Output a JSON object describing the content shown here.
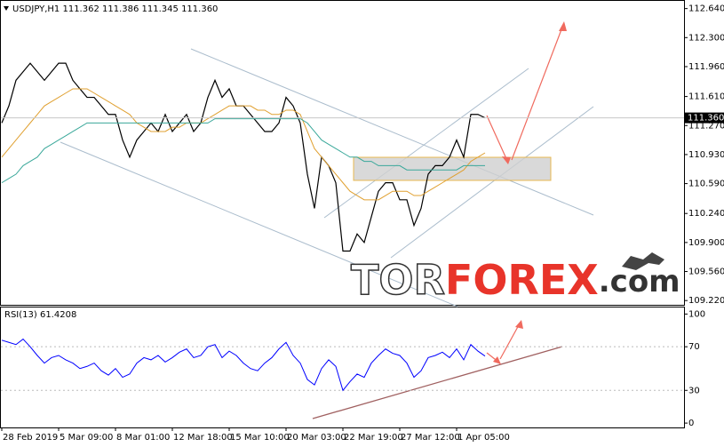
{
  "header": "USDJPY,H1  111.362 111.386 111.345 111.360",
  "watermark": {
    "prefix": "TOR",
    "main": "FOREX",
    "suffix": ".com"
  },
  "chart_data": [
    {
      "type": "line",
      "last_price": {
        "value": 111.36,
        "label": "111.360"
      },
      "categories": [
        "28 Feb 2019",
        null,
        null,
        null,
        null,
        null,
        null,
        null,
        "5 Mar 09:00",
        null,
        null,
        null,
        null,
        null,
        null,
        null,
        "8 Mar 01:00",
        null,
        null,
        null,
        null,
        null,
        null,
        null,
        "12 Mar 18:00",
        null,
        null,
        null,
        null,
        null,
        null,
        null,
        "15 Mar 10:00",
        null,
        null,
        null,
        null,
        null,
        null,
        null,
        "20 Mar 03:00",
        null,
        null,
        null,
        null,
        null,
        null,
        null,
        "22 Mar 19:00",
        null,
        null,
        null,
        null,
        null,
        null,
        null,
        "27 Mar 12:00",
        null,
        null,
        null,
        null,
        null,
        null,
        null,
        "1 Apr 05:00",
        null,
        null,
        null,
        null
      ],
      "ylim": [
        109.17,
        112.73
      ],
      "yticks": [
        {
          "value": 112.64,
          "label": "112.640"
        },
        {
          "value": 112.3,
          "label": "112.300"
        },
        {
          "value": 111.96,
          "label": "111.960"
        },
        {
          "value": 111.61,
          "label": "111.610"
        },
        {
          "value": 111.27,
          "label": "111.270"
        },
        {
          "value": 110.93,
          "label": "110.930"
        },
        {
          "value": 110.59,
          "label": "110.590"
        },
        {
          "value": 110.24,
          "label": "110.240"
        },
        {
          "value": 109.9,
          "label": "109.900"
        },
        {
          "value": 109.56,
          "label": "109.560"
        },
        {
          "value": 109.22,
          "label": "109.220"
        }
      ],
      "series": [
        {
          "color": "#000000",
          "values": [
            111.3,
            111.5,
            111.8,
            111.9,
            112.0,
            111.9,
            111.8,
            111.9,
            112.0,
            112.0,
            111.8,
            111.7,
            111.6,
            111.6,
            111.5,
            111.4,
            111.4,
            111.1,
            110.9,
            111.1,
            111.2,
            111.3,
            111.2,
            111.4,
            111.2,
            111.3,
            111.4,
            111.2,
            111.3,
            111.6,
            111.8,
            111.6,
            111.7,
            111.5,
            111.5,
            111.4,
            111.3,
            111.2,
            111.2,
            111.3,
            111.6,
            111.5,
            111.3,
            110.7,
            110.3,
            110.9,
            110.8,
            110.6,
            109.8,
            109.8,
            110.0,
            109.9,
            110.2,
            110.5,
            110.6,
            110.6,
            110.4,
            110.4,
            110.1,
            110.3,
            110.7,
            110.8,
            110.8,
            110.9,
            111.1,
            110.9,
            111.4,
            111.4,
            111.36
          ]
        },
        {
          "color": "#e0a030",
          "values": [
            110.9,
            111.0,
            111.1,
            111.2,
            111.3,
            111.4,
            111.5,
            111.55,
            111.6,
            111.65,
            111.7,
            111.7,
            111.7,
            111.65,
            111.6,
            111.55,
            111.5,
            111.45,
            111.4,
            111.3,
            111.25,
            111.2,
            111.2,
            111.2,
            111.25,
            111.25,
            111.3,
            111.3,
            111.3,
            111.35,
            111.4,
            111.45,
            111.5,
            111.5,
            111.5,
            111.5,
            111.45,
            111.45,
            111.4,
            111.4,
            111.45,
            111.45,
            111.4,
            111.2,
            111.0,
            110.9,
            110.8,
            110.7,
            110.6,
            110.5,
            110.45,
            110.4,
            110.4,
            110.4,
            110.45,
            110.5,
            110.5,
            110.5,
            110.45,
            110.45,
            110.5,
            110.55,
            110.6,
            110.65,
            110.7,
            110.75,
            110.85,
            110.9,
            110.95
          ]
        },
        {
          "color": "#3aa89a",
          "values": [
            110.6,
            110.65,
            110.7,
            110.8,
            110.85,
            110.9,
            111.0,
            111.05,
            111.1,
            111.15,
            111.2,
            111.25,
            111.3,
            111.3,
            111.3,
            111.3,
            111.3,
            111.3,
            111.3,
            111.3,
            111.3,
            111.3,
            111.3,
            111.3,
            111.3,
            111.3,
            111.3,
            111.3,
            111.3,
            111.3,
            111.35,
            111.35,
            111.35,
            111.35,
            111.35,
            111.35,
            111.35,
            111.35,
            111.35,
            111.35,
            111.35,
            111.35,
            111.35,
            111.3,
            111.2,
            111.1,
            111.05,
            111.0,
            110.95,
            110.9,
            110.9,
            110.85,
            110.85,
            110.8,
            110.8,
            110.8,
            110.8,
            110.75,
            110.75,
            110.75,
            110.75,
            110.75,
            110.75,
            110.75,
            110.75,
            110.8,
            110.8,
            110.8,
            110.8
          ]
        }
      ]
    },
    {
      "type": "line",
      "title": "RSI(13) 61.4208",
      "ylim": [
        -4,
        106
      ],
      "yticks": [
        100,
        70,
        30,
        0
      ],
      "series": [
        {
          "color": "#0000ff",
          "values": [
            76,
            74,
            72,
            77,
            70,
            62,
            55,
            60,
            62,
            58,
            55,
            50,
            52,
            55,
            48,
            44,
            50,
            42,
            45,
            55,
            60,
            58,
            62,
            56,
            60,
            65,
            68,
            60,
            62,
            70,
            72,
            60,
            66,
            62,
            55,
            50,
            48,
            55,
            60,
            68,
            74,
            62,
            55,
            40,
            35,
            50,
            58,
            52,
            30,
            38,
            45,
            42,
            55,
            62,
            68,
            64,
            62,
            55,
            42,
            48,
            60,
            62,
            65,
            60,
            68,
            58,
            72,
            66,
            61.42
          ]
        }
      ]
    }
  ]
}
